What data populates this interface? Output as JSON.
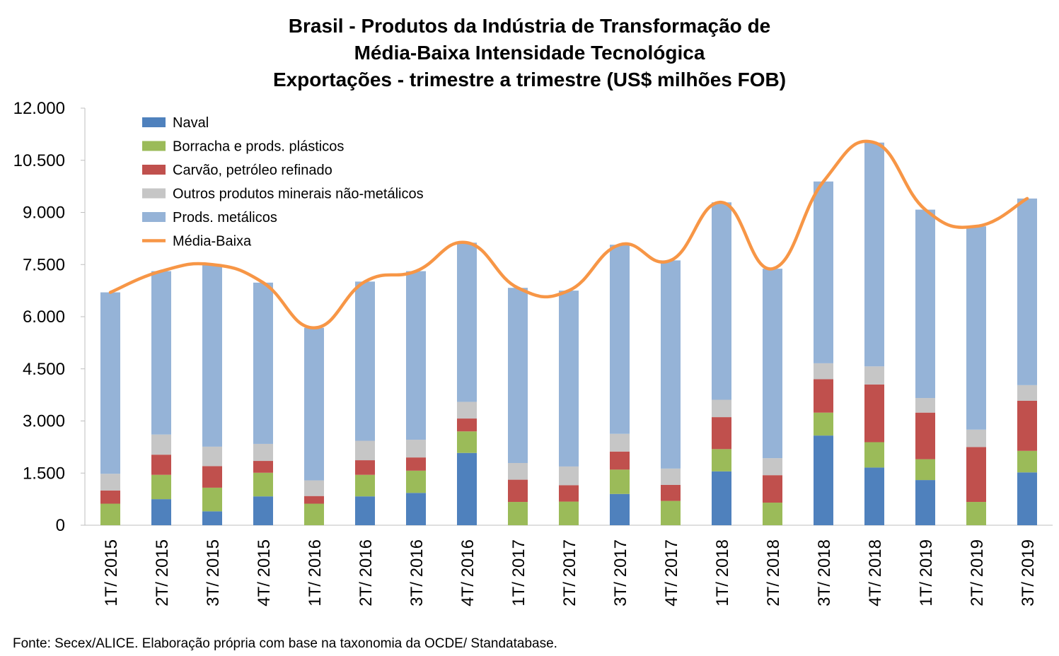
{
  "title": {
    "line1": "Brasil - Produtos da Indústria de Transformação de",
    "line2": "Média-Baixa Intensidade Tecnológica",
    "line3": "Exportações - trimestre a trimestre (US$ milhões FOB)"
  },
  "source": "Fonte: Secex/ALICE. Elaboração própria com base na taxonomia da OCDE/ Standatabase.",
  "chart_data": {
    "type": "bar",
    "stacked": true,
    "categories": [
      "1T/ 2015",
      "2T/ 2015",
      "3T/ 2015",
      "4T/ 2015",
      "1T/ 2016",
      "2T/ 2016",
      "3T/ 2016",
      "4T/ 2016",
      "1T/ 2017",
      "2T/ 2017",
      "3T/ 2017",
      "4T/ 2017",
      "1T/ 2018",
      "2T/ 2018",
      "3T/ 2018",
      "4T/ 2018",
      "1T/ 2019",
      "2T/ 2019",
      "3T/ 2019"
    ],
    "y_ticks": [
      "0",
      "1.500",
      "3.000",
      "4.500",
      "6.000",
      "7.500",
      "9.000",
      "10.500",
      "12.000"
    ],
    "ylim": [
      0,
      12000
    ],
    "grid": false,
    "legend_position": "top-left",
    "series": [
      {
        "name": "Naval",
        "color": "#4f81bd",
        "values": [
          0,
          750,
          400,
          830,
          0,
          830,
          930,
          2080,
          0,
          0,
          900,
          0,
          1550,
          0,
          2580,
          1660,
          1300,
          0,
          1520
        ]
      },
      {
        "name": "Borracha e prods. plásticos",
        "color": "#9bbb59",
        "values": [
          620,
          700,
          680,
          680,
          620,
          620,
          640,
          620,
          670,
          680,
          700,
          700,
          640,
          650,
          660,
          730,
          600,
          670,
          620
        ]
      },
      {
        "name": "Carvão, petróleo refinado",
        "color": "#c0504d",
        "values": [
          380,
          580,
          620,
          340,
          220,
          420,
          380,
          370,
          640,
          470,
          520,
          460,
          920,
          790,
          960,
          1660,
          1340,
          1580,
          1440
        ]
      },
      {
        "name": "Outros produtos minerais não-metálicos",
        "color": "#c6c6c6",
        "values": [
          480,
          580,
          560,
          490,
          450,
          560,
          510,
          480,
          480,
          540,
          510,
          470,
          500,
          490,
          460,
          520,
          420,
          500,
          450
        ]
      },
      {
        "name": "Prods. metálicos",
        "color": "#95b3d7",
        "values": [
          5220,
          4700,
          5240,
          4640,
          4390,
          4580,
          4850,
          4580,
          5040,
          5060,
          5440,
          5990,
          5680,
          5450,
          5230,
          6440,
          5420,
          5850,
          5370
        ]
      }
    ],
    "line": {
      "name": "Média-Baixa",
      "color": "#f79646",
      "values": [
        6700,
        7310,
        7500,
        6980,
        5680,
        7010,
        7310,
        8130,
        6830,
        6750,
        8070,
        7620,
        9290,
        7380,
        9890,
        11010,
        9080,
        8600,
        9400
      ]
    }
  }
}
